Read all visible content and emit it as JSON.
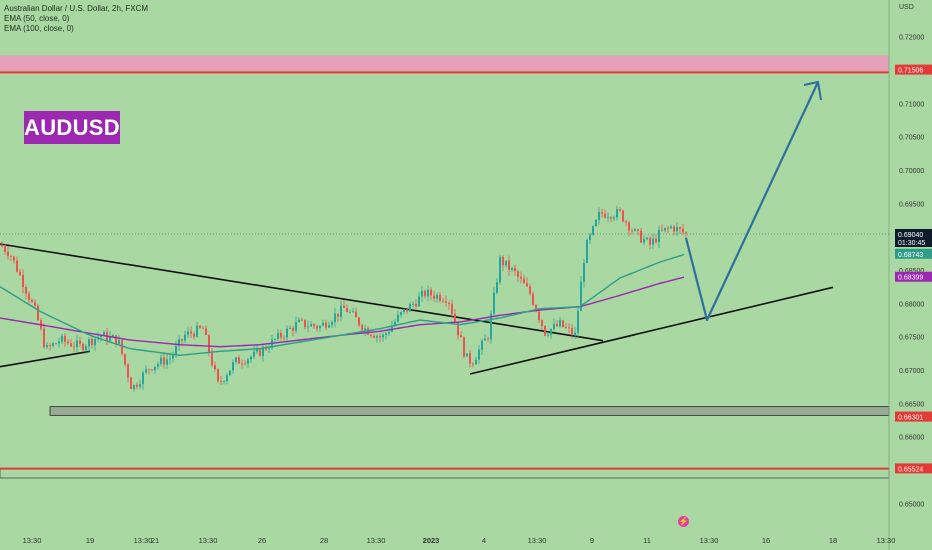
{
  "legend": {
    "symbol": "Australian Dollar / U.S. Dollar, 2h, FXCM",
    "ema50": "EMA (50, close, 0)",
    "ema100": "EMA (100, close, 0)"
  },
  "logo": "AUDUSD",
  "currency": "USD",
  "colors": {
    "background": "#a9d8a2",
    "up": "#26a69a",
    "down": "#ef5350",
    "ema50": "#2e9e8a",
    "ema100": "#9c27b0",
    "resistance": "#e53935",
    "zone": "#e4a0b8",
    "support_zone": "#9aac96",
    "projection": "#2e6f9e",
    "trendline": "#111111"
  },
  "chart_data": {
    "type": "candlestick",
    "y_axis": {
      "min": 0.643,
      "max": 0.7255,
      "ticks": [
        "0.72000",
        "0.71000",
        "0.70500",
        "0.70000",
        "0.69500",
        "0.68500",
        "0.68000",
        "0.67500",
        "0.67000",
        "0.66500",
        "0.66000",
        "0.65000"
      ]
    },
    "x_axis": {
      "ticks": [
        "13:30",
        "19",
        "13:30",
        "21",
        "13:30",
        "26",
        "28",
        "13:30",
        "2023",
        "4",
        "13:30",
        "9",
        "11",
        "13:30",
        "16",
        "18",
        "13:30"
      ]
    },
    "price_labels": [
      {
        "text": "0.71506",
        "value": 0.71506,
        "color": "#e53935"
      },
      {
        "text": "0.69040",
        "value": 0.6904,
        "color": "#0d1b2a",
        "sub": "01:30:45"
      },
      {
        "text": "0.68743",
        "value": 0.68743,
        "color": "#2e9e8a"
      },
      {
        "text": "0.68399",
        "value": 0.68399,
        "color": "#9c27b0"
      },
      {
        "text": "0.66301",
        "value": 0.66301,
        "color": "#e53935"
      },
      {
        "text": "0.65524",
        "value": 0.65524,
        "color": "#e53935"
      }
    ],
    "levels": {
      "resistance_zone": [
        0.7148,
        0.7172
      ],
      "support_zone": [
        0.6632,
        0.6645
      ],
      "lower_zone": [
        0.6538,
        0.6552
      ],
      "current_price": 0.6904
    },
    "path_anchors": [
      [
        0,
        0.6888
      ],
      [
        10,
        0.6875
      ],
      [
        22,
        0.6835
      ],
      [
        36,
        0.6785
      ],
      [
        46,
        0.673
      ],
      [
        60,
        0.6745
      ],
      [
        80,
        0.6735
      ],
      [
        100,
        0.6752
      ],
      [
        118,
        0.6745
      ],
      [
        132,
        0.6672
      ],
      [
        150,
        0.6705
      ],
      [
        170,
        0.6718
      ],
      [
        185,
        0.6752
      ],
      [
        203,
        0.6762
      ],
      [
        218,
        0.6678
      ],
      [
        235,
        0.6712
      ],
      [
        255,
        0.6722
      ],
      [
        275,
        0.6745
      ],
      [
        298,
        0.677
      ],
      [
        320,
        0.6765
      ],
      [
        345,
        0.6793
      ],
      [
        365,
        0.6762
      ],
      [
        382,
        0.6748
      ],
      [
        400,
        0.6782
      ],
      [
        425,
        0.6815
      ],
      [
        448,
        0.6808
      ],
      [
        466,
        0.6718
      ],
      [
        472,
        0.6712
      ],
      [
        488,
        0.6752
      ],
      [
        500,
        0.6865
      ],
      [
        515,
        0.6845
      ],
      [
        530,
        0.6815
      ],
      [
        545,
        0.6757
      ],
      [
        560,
        0.6768
      ],
      [
        575,
        0.6752
      ],
      [
        585,
        0.688
      ],
      [
        600,
        0.6935
      ],
      [
        620,
        0.6935
      ],
      [
        635,
        0.6905
      ],
      [
        650,
        0.6888
      ],
      [
        660,
        0.6905
      ],
      [
        672,
        0.6915
      ],
      [
        686,
        0.6904
      ]
    ],
    "ema50_anchors": [
      [
        0,
        0.6825
      ],
      [
        40,
        0.6788
      ],
      [
        90,
        0.6752
      ],
      [
        130,
        0.6732
      ],
      [
        180,
        0.6722
      ],
      [
        220,
        0.6728
      ],
      [
        260,
        0.6732
      ],
      [
        300,
        0.6742
      ],
      [
        340,
        0.6752
      ],
      [
        380,
        0.6762
      ],
      [
        420,
        0.6775
      ],
      [
        460,
        0.6768
      ],
      [
        500,
        0.6778
      ],
      [
        540,
        0.6792
      ],
      [
        580,
        0.6795
      ],
      [
        620,
        0.6838
      ],
      [
        660,
        0.6862
      ],
      [
        686,
        0.6874
      ]
    ],
    "ema100_anchors": [
      [
        0,
        0.6778
      ],
      [
        40,
        0.6768
      ],
      [
        90,
        0.6755
      ],
      [
        130,
        0.6745
      ],
      [
        180,
        0.6738
      ],
      [
        220,
        0.6735
      ],
      [
        260,
        0.6738
      ],
      [
        300,
        0.6745
      ],
      [
        340,
        0.6752
      ],
      [
        380,
        0.6758
      ],
      [
        420,
        0.6768
      ],
      [
        460,
        0.6772
      ],
      [
        500,
        0.6782
      ],
      [
        540,
        0.679
      ],
      [
        580,
        0.6795
      ],
      [
        620,
        0.6812
      ],
      [
        660,
        0.683
      ],
      [
        686,
        0.684
      ]
    ],
    "trendlines": [
      {
        "name": "descending-trendline",
        "points": [
          [
            0,
            0.6889
          ],
          [
            603,
            0.6744
          ]
        ]
      },
      {
        "name": "ascending-trendline",
        "points": [
          [
            470,
            0.6694
          ],
          [
            833,
            0.6824
          ]
        ]
      },
      {
        "name": "small-trendline",
        "points": [
          [
            0,
            0.6705
          ],
          [
            90,
            0.6728
          ]
        ]
      }
    ],
    "projection": [
      [
        686,
        0.6898
      ],
      [
        707,
        0.6775
      ],
      [
        818,
        0.7132
      ]
    ]
  }
}
